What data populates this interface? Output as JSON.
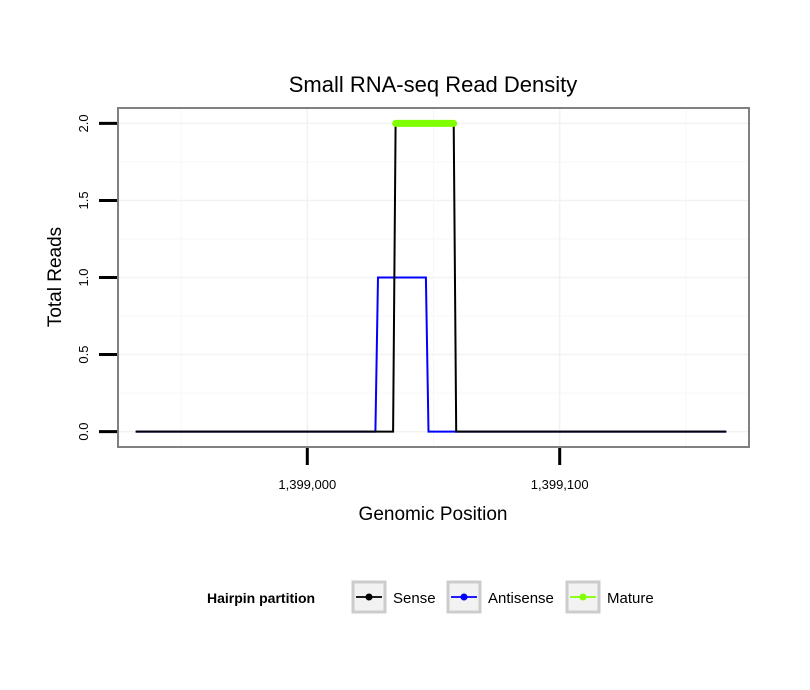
{
  "chart_data": {
    "type": "line",
    "title": "Small RNA-seq Read Density",
    "xlabel": "Genomic Position",
    "ylabel": "Total Reads",
    "xlim": [
      1398925,
      1399175
    ],
    "ylim": [
      -0.1,
      2.1
    ],
    "x_ticks": [
      {
        "value": 1399000,
        "label": "1,399,000"
      },
      {
        "value": 1399100,
        "label": "1,399,100"
      }
    ],
    "y_ticks": [
      {
        "value": 0.0,
        "label": "0.0"
      },
      {
        "value": 0.5,
        "label": "0.5"
      },
      {
        "value": 1.0,
        "label": "1.0"
      },
      {
        "value": 1.5,
        "label": "1.5"
      },
      {
        "value": 2.0,
        "label": "2.0"
      }
    ],
    "grid": true,
    "legend": {
      "title": "Hairpin partition",
      "position": "bottom",
      "entries": [
        "Sense",
        "Antisense",
        "Mature"
      ]
    },
    "series": [
      {
        "name": "Antisense",
        "color": "#0000ff",
        "style": "line",
        "x": [
          1398932,
          1399027,
          1399028,
          1399047,
          1399048,
          1399166
        ],
        "y": [
          0,
          0,
          1,
          1,
          0,
          0
        ]
      },
      {
        "name": "Sense",
        "color": "#000000",
        "style": "line",
        "x": [
          1398932,
          1399034,
          1399035,
          1399058,
          1399059,
          1399166
        ],
        "y": [
          0,
          0,
          2,
          2,
          0,
          0
        ]
      },
      {
        "name": "Mature",
        "color": "#7fff00",
        "style": "segment",
        "x": [
          1399035,
          1399058
        ],
        "y": [
          2,
          2
        ]
      }
    ]
  }
}
